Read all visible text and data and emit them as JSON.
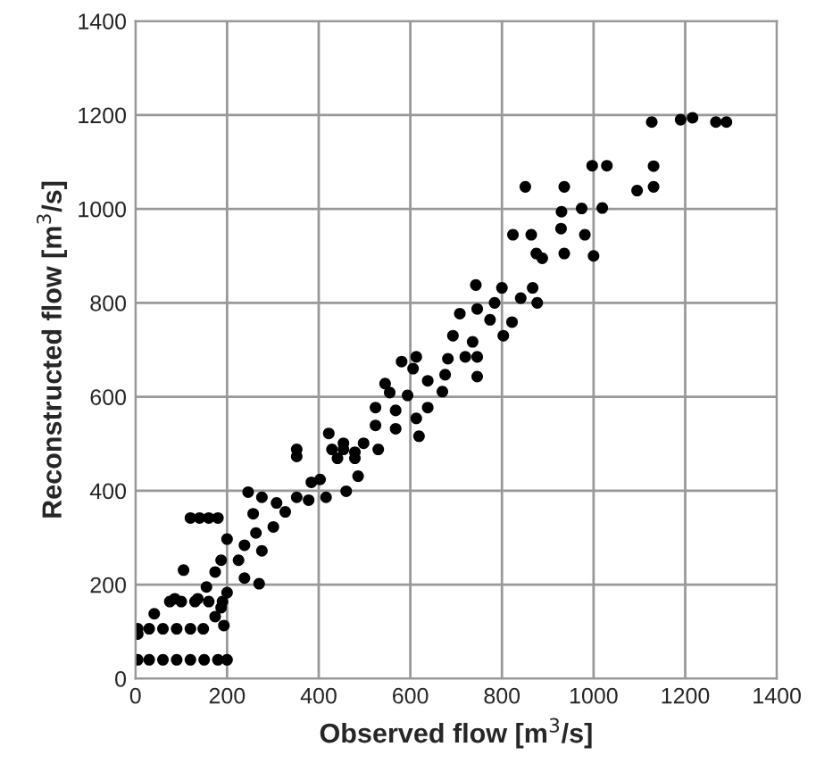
{
  "chart_data": {
    "type": "scatter",
    "xlabel": "Observed flow [m$^{3}$/s]",
    "ylabel": "Reconstructed flow [m$^{3}$/s]",
    "xlim": [
      0,
      1400
    ],
    "ylim": [
      0,
      1400
    ],
    "xticks": [
      0,
      200,
      400,
      600,
      800,
      1000,
      1200,
      1400
    ],
    "yticks": [
      0,
      200,
      400,
      600,
      800,
      1000,
      1200,
      1400
    ],
    "grid": true,
    "marker": "circle",
    "series": [
      {
        "color": "#000000",
        "x": [
          1127,
          1190,
          1216,
          1267,
          1290,
          997,
          1029,
          1131,
          1131,
          1095,
          851,
          936,
          930,
          974,
          1019,
          824,
          864,
          929,
          981,
          875,
          888,
          936,
          1000,
          743,
          800,
          867,
          877,
          841,
          708,
          746,
          784,
          774,
          822,
          803,
          693,
          736,
          720,
          682,
          746,
          746,
          676,
          613,
          581,
          606,
          638,
          670,
          545,
          555,
          594,
          524,
          568,
          638,
          613,
          568,
          619,
          524,
          498,
          530,
          454,
          429,
          479,
          486,
          441,
          352,
          352,
          422,
          454,
          479,
          384,
          403,
          416,
          460,
          378,
          352,
          327,
          308,
          276,
          246,
          257,
          301,
          263,
          238,
          200,
          276,
          225,
          187,
          174,
          270,
          238,
          200,
          155,
          105,
          86,
          136,
          187,
          174,
          41,
          193,
          120,
          140,
          160,
          180,
          5,
          30,
          60,
          90,
          120,
          148,
          5,
          30,
          60,
          90,
          120,
          150,
          180,
          200,
          5,
          75,
          100,
          130,
          160,
          190
        ],
        "values": [
          1185,
          1190,
          1194,
          1185,
          1185,
          1092,
          1092,
          1091,
          1047,
          1039,
          1047,
          1047,
          994,
          1001,
          1002,
          945,
          945,
          958,
          945,
          905,
          895,
          905,
          900,
          838,
          832,
          832,
          800,
          810,
          777,
          787,
          800,
          764,
          759,
          730,
          730,
          717,
          685,
          681,
          685,
          643,
          647,
          685,
          675,
          660,
          634,
          611,
          628,
          609,
          603,
          577,
          571,
          577,
          554,
          532,
          516,
          539,
          501,
          488,
          501,
          488,
          482,
          431,
          469,
          488,
          473,
          522,
          488,
          469,
          418,
          424,
          386,
          399,
          380,
          386,
          355,
          374,
          386,
          397,
          351,
          323,
          310,
          284,
          297,
          272,
          252,
          252,
          227,
          202,
          214,
          183,
          195,
          231,
          170,
          170,
          151,
          132,
          138,
          113,
          342,
          342,
          342,
          342,
          95,
          106,
          106,
          106,
          106,
          106,
          40,
          40,
          40,
          40,
          40,
          40,
          40,
          40,
          106,
          164,
          164,
          164,
          164,
          164
        ]
      }
    ]
  }
}
